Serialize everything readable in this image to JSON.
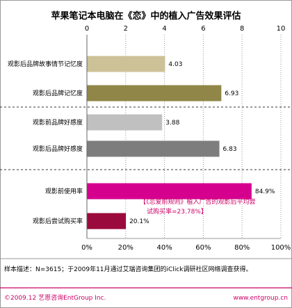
{
  "chart_data": [
    {
      "type": "bar",
      "orientation": "horizontal",
      "title": "苹果笔记本电脑在《恋》中的植入广告效果评估",
      "xlim": [
        0,
        10
      ],
      "ticks": [
        "0",
        "2",
        "4",
        "6",
        "8",
        "10"
      ],
      "tick_values": [
        0,
        2,
        4,
        6,
        8,
        10
      ],
      "grid": true,
      "categories": [
        "观影后品牌故事情节记忆度",
        "观影后品牌记忆度",
        "观影前品牌好感度",
        "观影后品牌好感度"
      ],
      "values": [
        4.03,
        6.93,
        3.88,
        6.83
      ],
      "value_labels": [
        "4.03",
        "6.93",
        "3.88",
        "6.83"
      ],
      "colors": [
        "#cdc197",
        "#8f8647",
        "#c0c0c0",
        "#7d7d7d"
      ]
    },
    {
      "type": "bar",
      "orientation": "horizontal",
      "xlim": [
        0,
        100
      ],
      "ticks": [
        "0%",
        "20%",
        "40%",
        "60%",
        "80%",
        "100%"
      ],
      "tick_values": [
        0,
        20,
        40,
        60,
        80,
        100
      ],
      "grid": true,
      "categories": [
        "观影前使用率",
        "观影后尝试购买率"
      ],
      "values": [
        84.9,
        20.1
      ],
      "value_labels": [
        "84.9%",
        "20.1%"
      ],
      "colors": [
        "#d6008f",
        "#9b0a3c"
      ],
      "annotation": [
        "【《恋爱前规则》植入广告的观影后平均尝",
        "试购买率=23.78%】"
      ]
    }
  ],
  "footer": {
    "sample_note": "样本描述：N=3615；于2009年11月通过艾瑞咨询集团的iClick调研社区网络调查获得。",
    "copyright": "©2009.12 艺恩咨询EntGroup Inc.",
    "website": "www.entgroup.cn"
  },
  "colors": {
    "accent": "#cc0066",
    "frame": "#999999"
  }
}
